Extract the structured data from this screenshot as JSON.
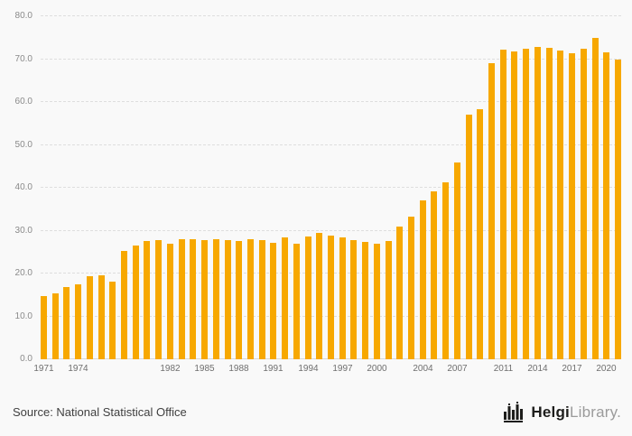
{
  "chart_data": {
    "type": "bar",
    "title": "",
    "xlabel": "",
    "ylabel": "",
    "x": [
      1971,
      1972,
      1973,
      1974,
      1975,
      1976,
      1977,
      1978,
      1979,
      1980,
      1981,
      1982,
      1983,
      1984,
      1985,
      1986,
      1987,
      1988,
      1989,
      1990,
      1991,
      1992,
      1993,
      1994,
      1995,
      1996,
      1997,
      1998,
      1999,
      2000,
      2001,
      2002,
      2003,
      2004,
      2005,
      2006,
      2007,
      2008,
      2009,
      2010,
      2011,
      2012,
      2013,
      2014,
      2015,
      2016,
      2017,
      2018,
      2019,
      2020,
      2021
    ],
    "values": [
      14.8,
      15.4,
      16.9,
      17.5,
      19.3,
      19.6,
      18.1,
      25.3,
      26.5,
      27.6,
      27.8,
      27.0,
      28.0,
      28.1,
      27.7,
      28.0,
      27.8,
      27.5,
      28.0,
      27.7,
      27.2,
      28.5,
      27.0,
      28.7,
      29.4,
      28.9,
      28.5,
      27.8,
      27.3,
      27.0,
      27.5,
      31.0,
      33.2,
      37.0,
      39.2,
      41.3,
      46.0,
      57.0,
      58.4,
      69.0,
      72.3,
      71.8,
      72.4,
      72.9,
      72.6,
      72.1,
      71.4,
      72.4,
      75.0,
      71.5,
      70.0
    ],
    "ylim": [
      0,
      80
    ],
    "ytick_step": 10,
    "ytick_labels": [
      "0.0",
      "10.0",
      "20.0",
      "30.0",
      "40.0",
      "50.0",
      "60.0",
      "70.0",
      "80.0"
    ],
    "xtick_labels": [
      "1971",
      "1974",
      "1982",
      "1985",
      "1988",
      "1991",
      "1994",
      "1997",
      "2000",
      "2004",
      "2007",
      "2011",
      "2014",
      "2017",
      "2020"
    ],
    "grid": "horizontal-dashed",
    "legend": "none",
    "bar_color": "#F7A800"
  },
  "footer": {
    "source": "Source: National Statistical Office",
    "logo": {
      "bold": "Helgi",
      "light": "Library."
    }
  },
  "colors": {
    "background": "#f9f9f9",
    "gridline": "#dedede",
    "axis_label": "#8a8a8a",
    "source_text": "#3f3f3f",
    "logo_dark": "#1d1d1b",
    "logo_gray": "#9b9b9b"
  }
}
